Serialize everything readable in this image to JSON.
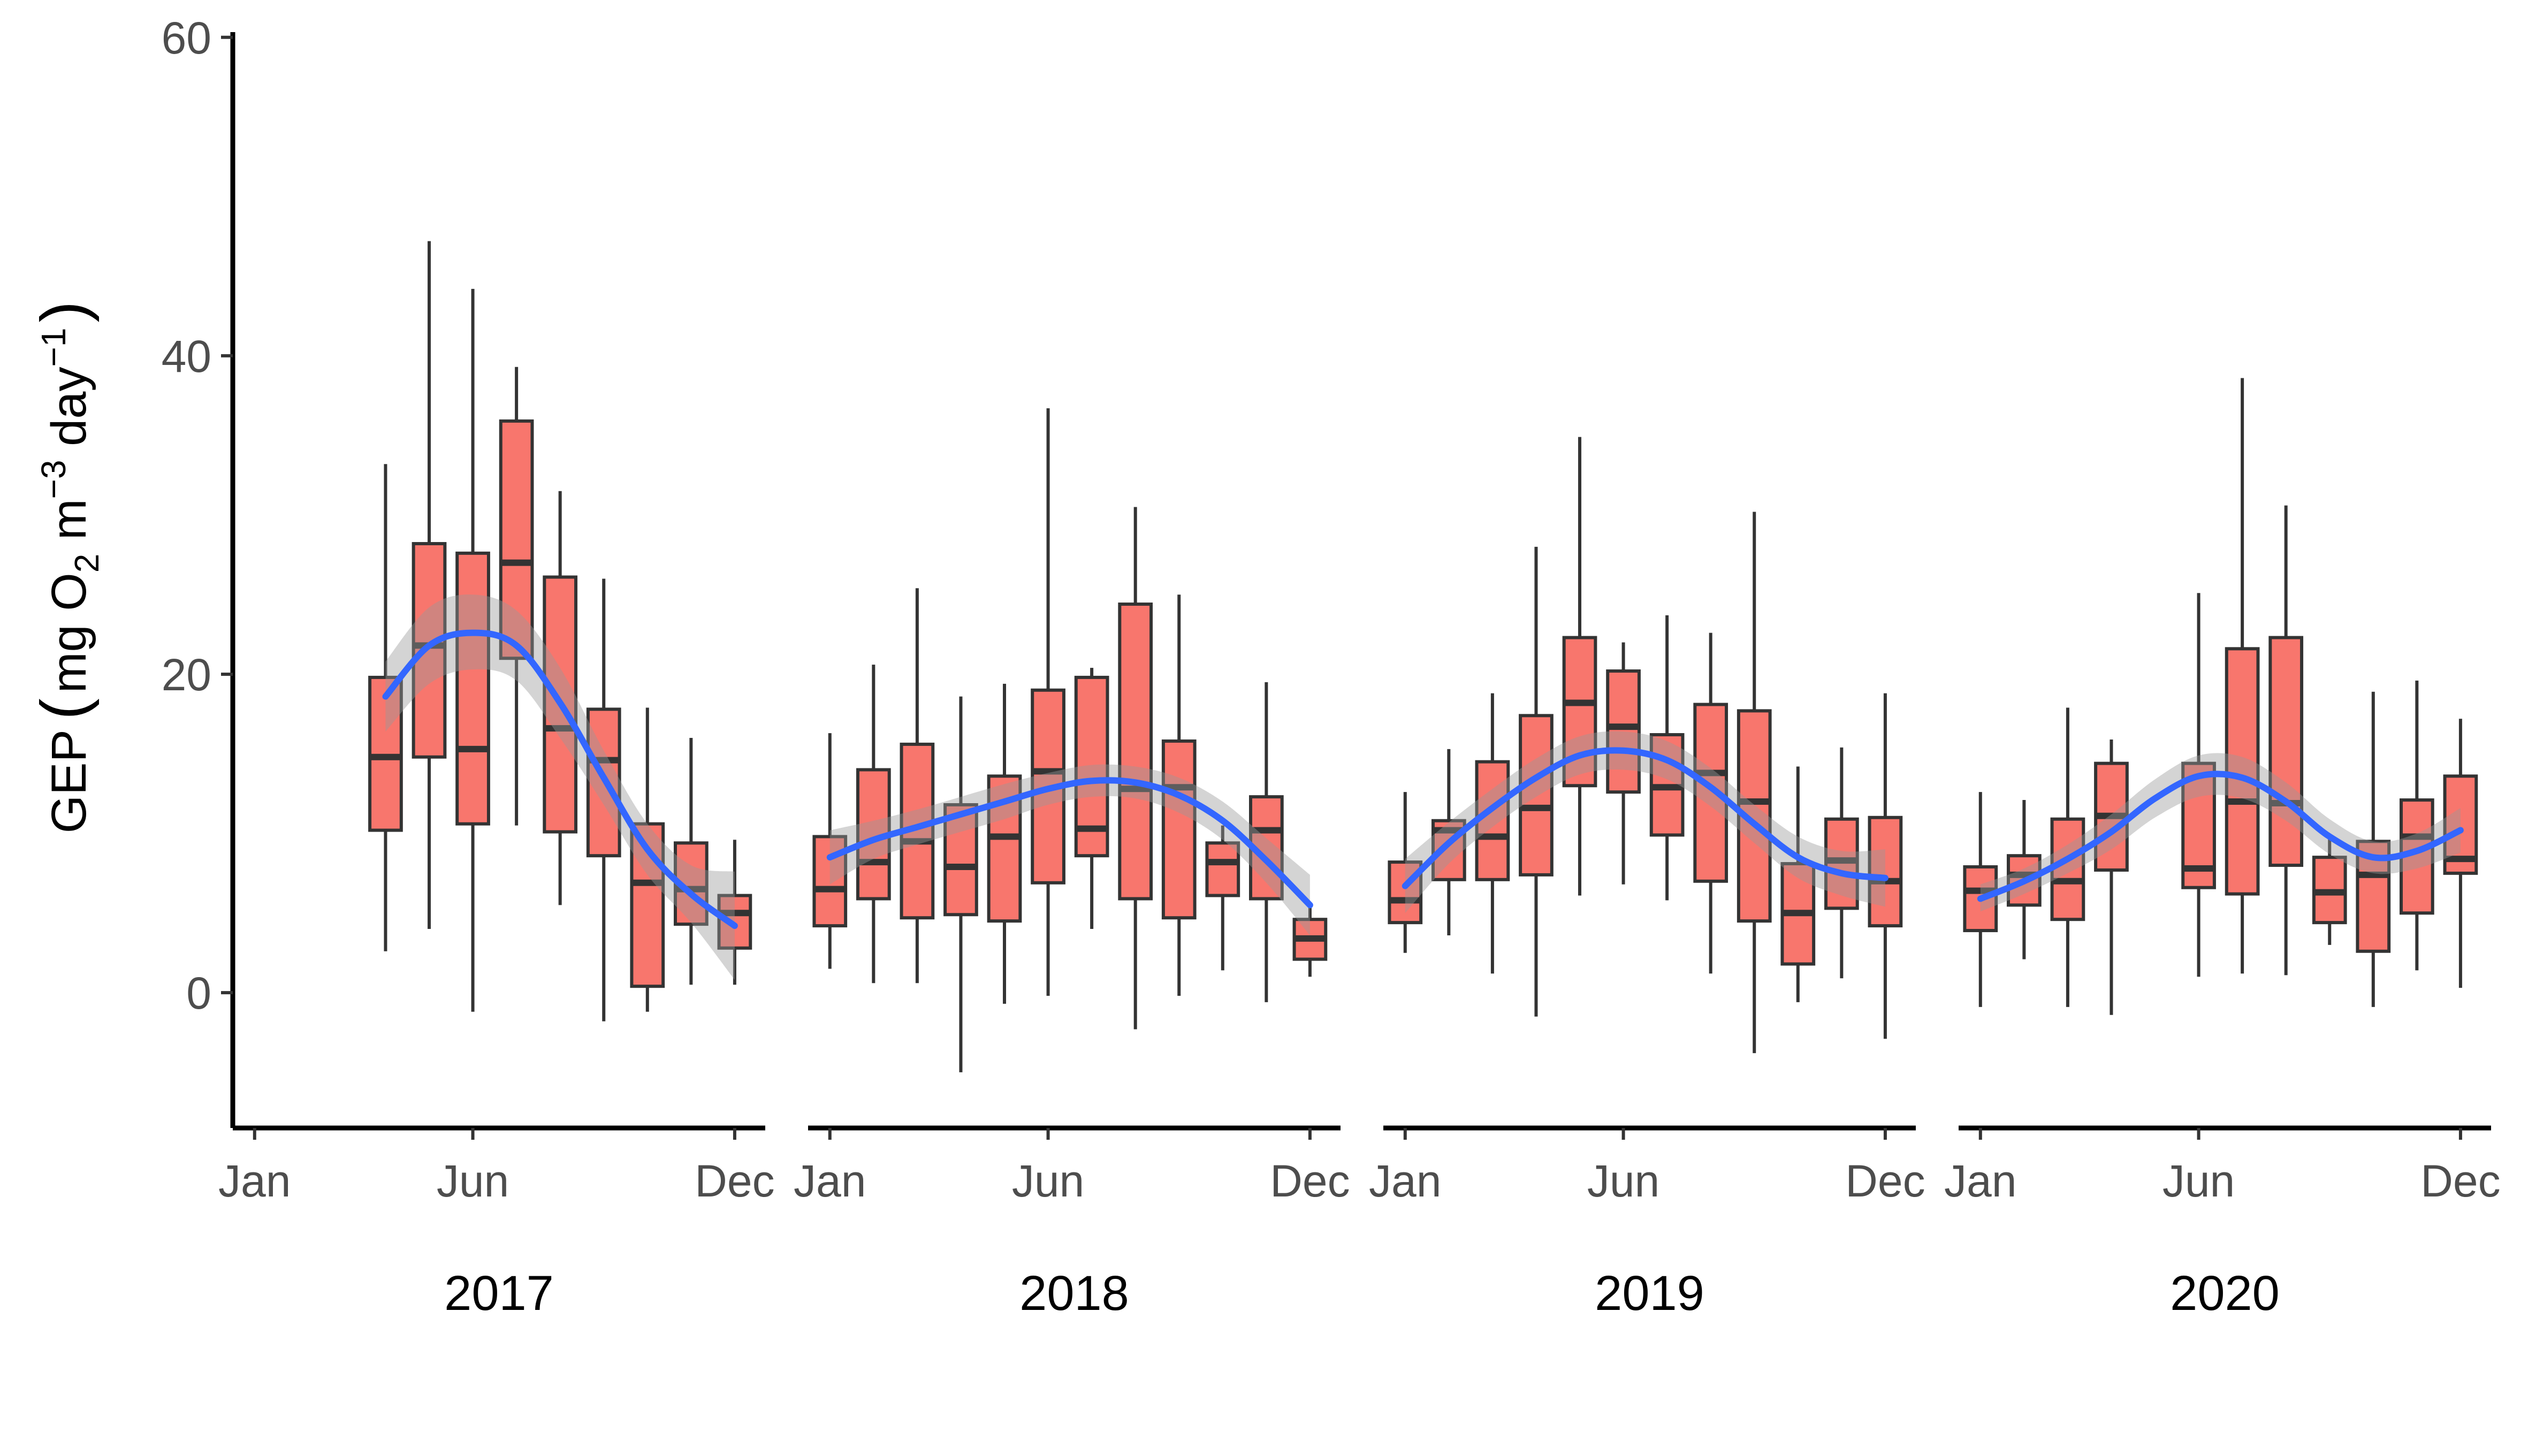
{
  "chart_data": {
    "type": "box",
    "ylabel": {
      "prefix": "GEP",
      "open_paren": "(",
      "mg": "mg O",
      "o2_sub": "2",
      "m": " m",
      "m_sup": "−3",
      "day": " day",
      "day_sup": "−1",
      "close_paren": ")"
    },
    "ylim": [
      -8.5,
      61
    ],
    "y_ticks": [
      0,
      20,
      40,
      60
    ],
    "month_ticks": [
      {
        "label": "Jan",
        "month": 1
      },
      {
        "label": "Jun",
        "month": 6
      },
      {
        "label": "Dec",
        "month": 12
      }
    ],
    "facet_xlim": [
      0.5,
      12.7
    ],
    "colors": {
      "box_fill": "#F8766D",
      "box_stroke": "#333333",
      "smooth_line": "#3366FF",
      "band": "#999999"
    },
    "panels": [
      {
        "year": "2017",
        "boxes": [
          {
            "month": 4,
            "min": 2.6,
            "q1": 10.2,
            "median": 14.8,
            "q3": 19.8,
            "max": 33.2
          },
          {
            "month": 5,
            "min": 4.0,
            "q1": 14.8,
            "median": 21.8,
            "q3": 28.2,
            "max": 47.2
          },
          {
            "month": 6,
            "min": -1.2,
            "q1": 10.6,
            "median": 15.3,
            "q3": 27.6,
            "max": 44.2
          },
          {
            "month": 7,
            "min": 10.5,
            "q1": 21.0,
            "median": 27.0,
            "q3": 35.9,
            "max": 39.3
          },
          {
            "month": 8,
            "min": 5.5,
            "q1": 10.1,
            "median": 16.6,
            "q3": 26.1,
            "max": 31.5
          },
          {
            "month": 9,
            "min": -1.8,
            "q1": 8.6,
            "median": 14.6,
            "q3": 17.8,
            "max": 26.0
          },
          {
            "month": 10,
            "min": -1.2,
            "q1": 0.4,
            "median": 6.9,
            "q3": 10.6,
            "max": 17.9
          },
          {
            "month": 11,
            "min": 0.5,
            "q1": 4.3,
            "median": 6.5,
            "q3": 9.4,
            "max": 16.0
          },
          {
            "month": 12,
            "min": 0.5,
            "q1": 2.8,
            "median": 5.0,
            "q3": 6.1,
            "max": 9.6
          }
        ],
        "smooth": {
          "x": [
            4,
            5,
            6,
            7,
            8,
            9,
            10,
            11,
            12
          ],
          "y": [
            18.6,
            21.8,
            22.6,
            21.8,
            18.2,
            13.5,
            9.0,
            6.2,
            4.2
          ],
          "lo": [
            16.4,
            19.4,
            20.3,
            19.6,
            16.0,
            11.8,
            7.4,
            4.4,
            0.8
          ],
          "hi": [
            20.8,
            24.2,
            25.0,
            24.0,
            20.4,
            15.2,
            10.6,
            8.0,
            7.6
          ]
        }
      },
      {
        "year": "2018",
        "boxes": [
          {
            "month": 1,
            "min": 1.5,
            "q1": 4.2,
            "median": 6.5,
            "q3": 9.8,
            "max": 16.3
          },
          {
            "month": 2,
            "min": 0.6,
            "q1": 5.9,
            "median": 8.2,
            "q3": 14.0,
            "max": 20.6
          },
          {
            "month": 3,
            "min": 0.6,
            "q1": 4.7,
            "median": 9.5,
            "q3": 15.6,
            "max": 25.4
          },
          {
            "month": 4,
            "min": -5.0,
            "q1": 4.9,
            "median": 7.9,
            "q3": 11.8,
            "max": 18.6
          },
          {
            "month": 5,
            "min": -0.7,
            "q1": 4.5,
            "median": 9.8,
            "q3": 13.6,
            "max": 19.4
          },
          {
            "month": 6,
            "min": -0.2,
            "q1": 6.9,
            "median": 13.9,
            "q3": 19.0,
            "max": 36.7
          },
          {
            "month": 7,
            "min": 4.0,
            "q1": 8.6,
            "median": 10.3,
            "q3": 19.8,
            "max": 20.4
          },
          {
            "month": 8,
            "min": -2.3,
            "q1": 5.9,
            "median": 12.8,
            "q3": 24.4,
            "max": 30.5
          },
          {
            "month": 9,
            "min": -0.2,
            "q1": 4.7,
            "median": 12.9,
            "q3": 15.8,
            "max": 25.0
          },
          {
            "month": 10,
            "min": 1.4,
            "q1": 6.1,
            "median": 8.2,
            "q3": 9.4,
            "max": 10.5
          },
          {
            "month": 11,
            "min": -0.6,
            "q1": 5.9,
            "median": 10.2,
            "q3": 12.3,
            "max": 19.5
          },
          {
            "month": 12,
            "min": 1.0,
            "q1": 2.1,
            "median": 3.4,
            "q3": 4.6,
            "max": 5.4
          }
        ],
        "smooth": {
          "x": [
            1,
            2,
            3,
            4,
            5,
            6,
            7,
            8,
            9,
            10,
            11,
            12
          ],
          "y": [
            8.5,
            9.6,
            10.4,
            11.2,
            12.0,
            12.8,
            13.3,
            13.2,
            12.4,
            10.8,
            8.3,
            5.5
          ],
          "lo": [
            6.8,
            8.4,
            9.3,
            10.1,
            10.9,
            11.8,
            12.3,
            12.2,
            11.3,
            9.6,
            6.9,
            3.6
          ],
          "hi": [
            10.2,
            10.8,
            11.5,
            12.3,
            13.1,
            13.8,
            14.3,
            14.2,
            13.5,
            12.0,
            9.7,
            7.4
          ]
        }
      },
      {
        "year": "2019",
        "boxes": [
          {
            "month": 1,
            "min": 2.5,
            "q1": 4.4,
            "median": 5.8,
            "q3": 8.2,
            "max": 12.6
          },
          {
            "month": 2,
            "min": 3.6,
            "q1": 7.1,
            "median": 10.2,
            "q3": 10.8,
            "max": 15.3
          },
          {
            "month": 3,
            "min": 1.2,
            "q1": 7.1,
            "median": 9.8,
            "q3": 14.5,
            "max": 18.8
          },
          {
            "month": 4,
            "min": -1.5,
            "q1": 7.4,
            "median": 11.6,
            "q3": 17.4,
            "max": 28.0
          },
          {
            "month": 5,
            "min": 6.1,
            "q1": 13.0,
            "median": 18.2,
            "q3": 22.3,
            "max": 34.9
          },
          {
            "month": 6,
            "min": 6.8,
            "q1": 12.6,
            "median": 16.7,
            "q3": 20.2,
            "max": 22.0
          },
          {
            "month": 7,
            "min": 5.8,
            "q1": 9.9,
            "median": 12.9,
            "q3": 16.2,
            "max": 23.7
          },
          {
            "month": 8,
            "min": 1.2,
            "q1": 7.0,
            "median": 13.8,
            "q3": 18.1,
            "max": 22.6
          },
          {
            "month": 9,
            "min": -3.8,
            "q1": 4.5,
            "median": 12.0,
            "q3": 17.7,
            "max": 30.2
          },
          {
            "month": 10,
            "min": -0.6,
            "q1": 1.8,
            "median": 5.0,
            "q3": 8.1,
            "max": 14.2
          },
          {
            "month": 11,
            "min": 0.9,
            "q1": 5.3,
            "median": 8.3,
            "q3": 10.9,
            "max": 15.4
          },
          {
            "month": 12,
            "min": -2.9,
            "q1": 4.2,
            "median": 7.0,
            "q3": 11.0,
            "max": 18.8
          }
        ],
        "smooth": {
          "x": [
            1,
            2,
            3,
            4,
            5,
            6,
            7,
            8,
            9,
            10,
            11,
            12
          ],
          "y": [
            6.7,
            9.4,
            11.6,
            13.5,
            14.9,
            15.2,
            14.6,
            12.9,
            10.6,
            8.5,
            7.5,
            7.2
          ],
          "lo": [
            5.0,
            8.1,
            10.4,
            12.3,
            13.7,
            14.0,
            13.4,
            11.7,
            9.4,
            7.2,
            6.1,
            5.4
          ],
          "hi": [
            8.4,
            10.7,
            12.8,
            14.7,
            16.1,
            16.4,
            15.8,
            14.1,
            11.8,
            9.8,
            8.9,
            9.0
          ]
        }
      },
      {
        "year": "2020",
        "boxes": [
          {
            "month": 1,
            "min": -0.9,
            "q1": 3.9,
            "median": 6.4,
            "q3": 7.9,
            "max": 12.6
          },
          {
            "month": 2,
            "min": 2.1,
            "q1": 5.5,
            "median": 7.4,
            "q3": 8.6,
            "max": 12.1
          },
          {
            "month": 3,
            "min": -0.9,
            "q1": 4.6,
            "median": 7.0,
            "q3": 10.9,
            "max": 17.9
          },
          {
            "month": 4,
            "min": -1.4,
            "q1": 7.7,
            "median": 11.1,
            "q3": 14.4,
            "max": 15.9
          },
          {
            "month": 6,
            "min": 1.0,
            "q1": 6.6,
            "median": 7.8,
            "q3": 14.4,
            "max": 25.1
          },
          {
            "month": 7,
            "min": 1.2,
            "q1": 6.2,
            "median": 12.0,
            "q3": 21.6,
            "max": 38.6
          },
          {
            "month": 8,
            "min": 1.1,
            "q1": 8.0,
            "median": 11.9,
            "q3": 22.3,
            "max": 30.6
          },
          {
            "month": 9,
            "min": 3.0,
            "q1": 4.4,
            "median": 6.3,
            "q3": 8.5,
            "max": 9.8
          },
          {
            "month": 10,
            "min": -0.9,
            "q1": 2.6,
            "median": 7.4,
            "q3": 9.5,
            "max": 18.9
          },
          {
            "month": 11,
            "min": 1.4,
            "q1": 5.0,
            "median": 9.8,
            "q3": 12.1,
            "max": 19.6
          },
          {
            "month": 12,
            "min": 0.3,
            "q1": 7.5,
            "median": 8.4,
            "q3": 13.6,
            "max": 17.2
          }
        ],
        "smooth": {
          "x": [
            1,
            2,
            3,
            4,
            5,
            6,
            7,
            8,
            9,
            10,
            11,
            12
          ],
          "y": [
            5.9,
            7.0,
            8.4,
            10.1,
            12.2,
            13.6,
            13.5,
            12.0,
            9.8,
            8.5,
            8.9,
            10.2
          ],
          "lo": [
            5.1,
            6.2,
            7.5,
            9.0,
            11.0,
            12.3,
            12.2,
            10.8,
            8.7,
            7.5,
            7.8,
            8.8
          ],
          "hi": [
            6.8,
            7.8,
            9.3,
            11.2,
            13.4,
            14.9,
            14.8,
            13.2,
            10.9,
            9.5,
            10.0,
            11.6
          ]
        }
      }
    ]
  }
}
